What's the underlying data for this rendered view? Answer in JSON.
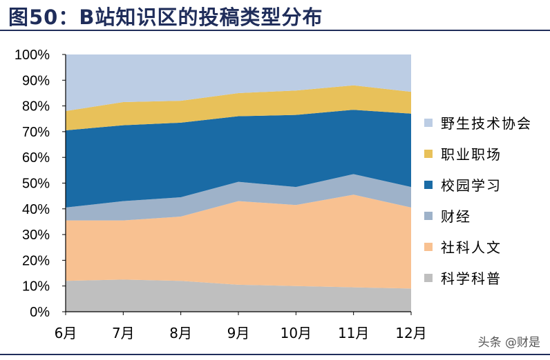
{
  "figure": {
    "title": "图50：B站知识区的投稿类型分布",
    "watermark": "头条 @财是"
  },
  "chart_data": {
    "type": "area",
    "stacked": true,
    "categories": [
      "6月",
      "7月",
      "8月",
      "9月",
      "10月",
      "11月",
      "12月"
    ],
    "ylim": [
      0,
      100
    ],
    "ytick_labels": [
      "0%",
      "10%",
      "20%",
      "30%",
      "40%",
      "50%",
      "60%",
      "70%",
      "80%",
      "90%",
      "100%"
    ],
    "series": [
      {
        "name": "科学科普",
        "color": "#bfbfbf",
        "values": [
          12,
          12.5,
          12,
          10.5,
          10,
          9.5,
          9
        ]
      },
      {
        "name": "社科人文",
        "color": "#f8c191",
        "values": [
          23.5,
          23,
          25,
          32.5,
          31.5,
          36,
          31.5
        ]
      },
      {
        "name": "财经",
        "color": "#9eb2c9",
        "values": [
          5,
          7.5,
          7.5,
          7.5,
          7,
          8,
          8
        ]
      },
      {
        "name": "校园学习",
        "color": "#1a6ba5",
        "values": [
          30,
          29.5,
          29,
          25.5,
          28,
          25,
          28.5
        ]
      },
      {
        "name": "职业职场",
        "color": "#e8c15a",
        "values": [
          7.5,
          9,
          8.5,
          9,
          9.5,
          9.5,
          8.5
        ]
      },
      {
        "name": "野生技术协会",
        "color": "#bccde4",
        "values": [
          22,
          18.5,
          18,
          15,
          14,
          12,
          14.5
        ]
      }
    ],
    "legend_position": "right",
    "grid": false
  }
}
